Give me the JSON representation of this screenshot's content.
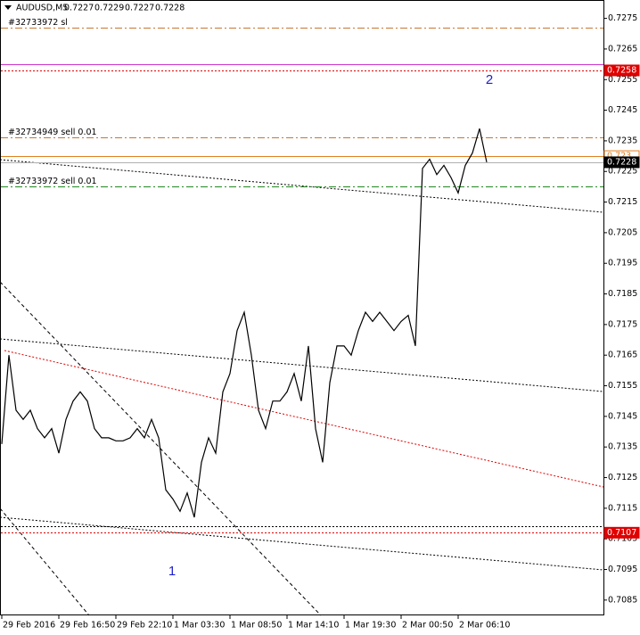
{
  "chart_data": {
    "type": "line",
    "title": "AUDUSD,M5",
    "ohlc": [
      0.7227,
      0.7229,
      0.7227,
      0.7228
    ],
    "categories": [
      "29 Feb 2016",
      null,
      null,
      null,
      null,
      null,
      null,
      null,
      "29 Feb 16:50",
      null,
      null,
      null,
      null,
      null,
      null,
      null,
      "29 Feb 22:10",
      null,
      null,
      null,
      null,
      null,
      null,
      null,
      "1 Mar 03:30",
      null,
      null,
      null,
      null,
      null,
      null,
      null,
      "1 Mar 08:50",
      null,
      null,
      null,
      null,
      null,
      null,
      null,
      "1 Mar 14:10",
      null,
      null,
      null,
      null,
      null,
      null,
      null,
      "1 Mar 19:30",
      null,
      null,
      null,
      null,
      null,
      null,
      null,
      "2 Mar 00:50",
      null,
      null,
      null,
      null,
      null,
      null,
      null,
      "2 Mar 06:10",
      null,
      null,
      null,
      null
    ],
    "series": [
      {
        "color": "#000000",
        "values": [
          0.7136,
          0.7165,
          0.7147,
          0.7144,
          0.7147,
          0.7141,
          0.7138,
          0.7141,
          0.7133,
          0.7144,
          0.715,
          0.7153,
          0.715,
          0.7141,
          0.7138,
          0.7138,
          0.7137,
          0.7137,
          0.7138,
          0.7141,
          0.7138,
          0.7144,
          0.7138,
          0.7121,
          0.7118,
          0.7114,
          0.712,
          0.7112,
          0.713,
          0.7138,
          0.7133,
          0.7153,
          0.7159,
          0.7173,
          0.7179,
          0.7165,
          0.7147,
          0.7141,
          0.715,
          0.715,
          0.7153,
          0.7159,
          0.715,
          0.7168,
          0.7141,
          0.713,
          0.7156,
          0.7168,
          0.7168,
          0.7165,
          0.7173,
          0.7179,
          0.7176,
          0.7179,
          0.7176,
          0.7173,
          0.7176,
          0.7178,
          0.7168,
          0.7226,
          0.7229,
          0.7224,
          0.7227,
          0.7223,
          0.7218,
          0.7227,
          0.7231,
          0.7239,
          0.7228
        ]
      }
    ],
    "ylim": [
      0.708,
      0.7281
    ],
    "yticks": [
      0.7275,
      0.7265,
      0.7255,
      0.7245,
      0.7235,
      0.7225,
      0.7215,
      0.7205,
      0.7195,
      0.7185,
      0.7175,
      0.7165,
      0.7155,
      0.7145,
      0.7135,
      0.7125,
      0.7115,
      0.7105,
      0.7095,
      0.7085
    ],
    "levels": [
      {
        "value": 0.7272,
        "label": "#32733972 sl",
        "color": "#c87533",
        "style": "dashdot"
      },
      {
        "value": 0.726,
        "color": "#cc33cc",
        "style": "solid"
      },
      {
        "value": 0.7258,
        "color": "#e00000",
        "style": "dotted",
        "tag": true
      },
      {
        "value": 0.7236,
        "label": "#32734949 sell 0.01",
        "color": "#c87533",
        "style": "dashdot"
      },
      {
        "value": 0.723,
        "color": "#e08020",
        "style": "solid",
        "tag": true
      },
      {
        "value": 0.7228,
        "color": "#b0b0b0",
        "style": "solid",
        "tag": true
      },
      {
        "value": 0.722,
        "label": "#32733972 sell 0.01",
        "color": "#228822",
        "style": "dashdot"
      },
      {
        "value": 0.7109,
        "color": "#000000",
        "style": "dotted"
      },
      {
        "value": 0.7107,
        "color": "#e00000",
        "style": "dotted",
        "tag": true
      }
    ],
    "annotations": [
      "1",
      "2"
    ]
  }
}
